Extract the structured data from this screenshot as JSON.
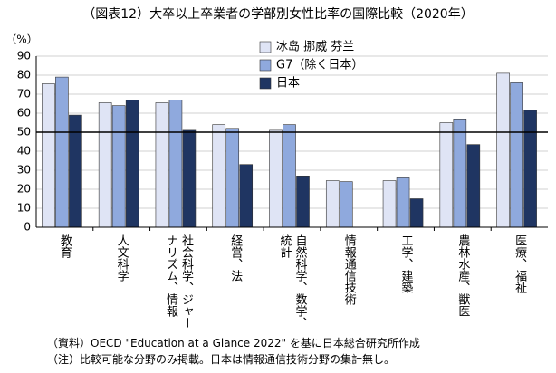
{
  "chart_data": {
    "type": "bar",
    "title": "（図表12）大卒以上卒業者の学部別女性比率の国際比較（2020年）",
    "y_unit": "（%）",
    "categories": [
      "教育",
      "人文科学",
      "社会科学、ジャーナリズム、情報",
      "経営、法",
      "自然科学、数学、統計",
      "情報通信技術",
      "工学、建築",
      "農林水産、獣医",
      "医療、福祉"
    ],
    "series": [
      {
        "name": "冰岛 挪威 芬兰",
        "color": "#dfe4f5",
        "values": [
          75.5,
          65.5,
          65.5,
          54,
          51,
          24.5,
          24.5,
          55,
          81
        ]
      },
      {
        "name": "G7（除く日本）",
        "color": "#8fa9dd",
        "values": [
          79,
          64,
          67,
          52,
          54,
          24,
          26,
          57,
          76
        ]
      },
      {
        "name": "日本",
        "color": "#1f3562",
        "values": [
          59,
          67,
          51,
          33,
          27,
          null,
          15,
          43.5,
          61.5
        ]
      }
    ],
    "ylim": [
      0,
      90
    ],
    "yticks": [
      0,
      10,
      20,
      30,
      40,
      50,
      60,
      70,
      80,
      90
    ],
    "reference_line": 50,
    "grid": true,
    "notes": [
      "（資料）OECD \"Education at a Glance 2022\" を基に日本総合研究所作成",
      "（注）比較可能な分野のみ掲載。日本は情報通信技術分野の集計無し。"
    ]
  }
}
